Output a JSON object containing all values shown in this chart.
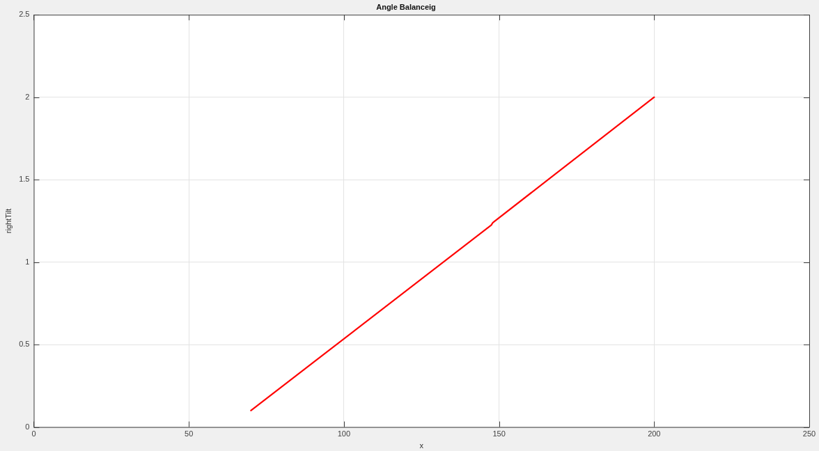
{
  "chart_data": {
    "type": "line",
    "title": "Angle Balanceig",
    "xlabel": "x",
    "ylabel": "rightTilt",
    "xlim": [
      0,
      250
    ],
    "xticks": [
      0,
      50,
      100,
      150,
      200,
      250
    ],
    "ylim": [
      0,
      2.5
    ],
    "yticks": [
      0,
      0.5,
      1,
      1.5,
      2,
      2.5
    ],
    "grid": true,
    "series": [
      {
        "color": "#ff0000",
        "x": [
          70,
          147.5,
          148,
          200
        ],
        "values": [
          0.1,
          1.225,
          1.24,
          2
        ]
      }
    ]
  }
}
